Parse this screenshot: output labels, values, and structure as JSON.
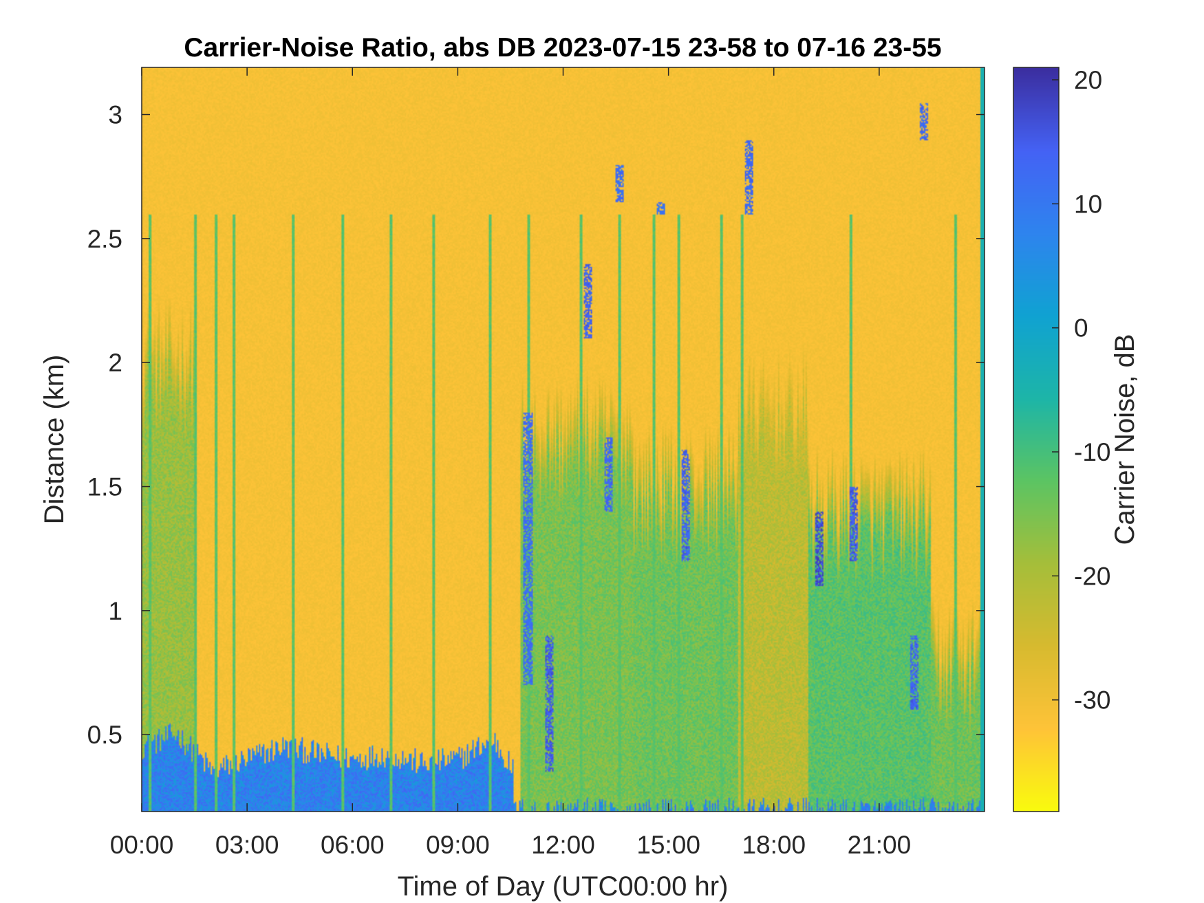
{
  "chart_data": {
    "type": "heatmap",
    "title": "Carrier-Noise Ratio, abs DB 2023-07-15 23-58 to 07-16 23-55",
    "xlabel": "Time of Day (UTC00:00 hr)",
    "ylabel": "Distance (km)",
    "xlim_hours": [
      0,
      24
    ],
    "ylim_km": [
      0.19,
      3.19
    ],
    "x_ticks": [
      {
        "hours": 0,
        "label": "00:00"
      },
      {
        "hours": 3,
        "label": "03:00"
      },
      {
        "hours": 6,
        "label": "06:00"
      },
      {
        "hours": 9,
        "label": "09:00"
      },
      {
        "hours": 12,
        "label": "12:00"
      },
      {
        "hours": 15,
        "label": "15:00"
      },
      {
        "hours": 18,
        "label": "18:00"
      },
      {
        "hours": 21,
        "label": "21:00"
      }
    ],
    "y_ticks": [
      {
        "value": 0.5,
        "label": "0.5"
      },
      {
        "value": 1,
        "label": "1"
      },
      {
        "value": 1.5,
        "label": "1.5"
      },
      {
        "value": 2,
        "label": "2"
      },
      {
        "value": 2.5,
        "label": "2.5"
      },
      {
        "value": 3,
        "label": "3"
      }
    ],
    "colorbar": {
      "label": "Carrier Noise, dB",
      "clim": [
        -39,
        21
      ],
      "ticks": [
        {
          "value": 20,
          "label": "20"
        },
        {
          "value": 10,
          "label": "10"
        },
        {
          "value": 0,
          "label": "0"
        },
        {
          "value": -10,
          "label": "-10"
        },
        {
          "value": -20,
          "label": "-20"
        },
        {
          "value": -30,
          "label": "-30"
        }
      ],
      "colormap": [
        "#F9FB0E",
        "#FEC338",
        "#D7BA2F",
        "#A5BE3A",
        "#5CC463",
        "#1DB5A8",
        "#10A2D2",
        "#2E84EE",
        "#4462F4",
        "#3B2E9F"
      ]
    },
    "grid": false,
    "background_level_db": -31,
    "features": {
      "near_ground_enhanced_layer": {
        "top_km_by_hour": [
          [
            0,
            0.45
          ],
          [
            1,
            0.5
          ],
          [
            2,
            0.35
          ],
          [
            3,
            0.4
          ],
          [
            4,
            0.45
          ],
          [
            5,
            0.42
          ],
          [
            6,
            0.4
          ],
          [
            7,
            0.42
          ],
          [
            8,
            0.38
          ],
          [
            9,
            0.4
          ],
          [
            10,
            0.48
          ],
          [
            10.6,
            0.35
          ]
        ],
        "level_db": 10
      },
      "daytime_plumes": [
        {
          "t_start": 0.0,
          "t_end": 1.5,
          "top_km": 2.1,
          "level_db": -18
        },
        {
          "t_start": 10.8,
          "t_end": 14.0,
          "top_km": 1.8,
          "level_db": -15
        },
        {
          "t_start": 14.0,
          "t_end": 17.0,
          "top_km": 1.6,
          "level_db": -14
        },
        {
          "t_start": 17.0,
          "t_end": 19.0,
          "top_km": 1.9,
          "level_db": -22
        },
        {
          "t_start": 19.0,
          "t_end": 22.5,
          "top_km": 1.5,
          "level_db": -12
        },
        {
          "t_start": 22.5,
          "t_end": 24.0,
          "top_km": 0.9,
          "level_db": -14
        }
      ],
      "cloud_patches": [
        {
          "t": 11.0,
          "d0": 0.7,
          "d1": 1.8,
          "level_db": 12
        },
        {
          "t": 11.6,
          "d0": 0.35,
          "d1": 0.9,
          "level_db": 15
        },
        {
          "t": 12.7,
          "d0": 2.1,
          "d1": 2.4,
          "level_db": 14
        },
        {
          "t": 13.3,
          "d0": 1.4,
          "d1": 1.7,
          "level_db": 13
        },
        {
          "t": 13.6,
          "d0": 2.65,
          "d1": 2.8,
          "level_db": 12
        },
        {
          "t": 14.8,
          "d0": 2.6,
          "d1": 2.65,
          "level_db": 11
        },
        {
          "t": 15.5,
          "d0": 1.2,
          "d1": 1.65,
          "level_db": 14
        },
        {
          "t": 17.3,
          "d0": 2.6,
          "d1": 2.9,
          "level_db": 13
        },
        {
          "t": 19.3,
          "d0": 1.1,
          "d1": 1.4,
          "level_db": 17
        },
        {
          "t": 20.3,
          "d0": 1.2,
          "d1": 1.5,
          "level_db": 15
        },
        {
          "t": 22.0,
          "d0": 0.6,
          "d1": 0.9,
          "level_db": 14
        },
        {
          "t": 22.3,
          "d0": 2.9,
          "d1": 3.05,
          "level_db": 13
        }
      ],
      "vertical_streaks_hours": [
        0.2,
        1.5,
        2.1,
        2.6,
        4.3,
        5.7,
        7.1,
        8.3,
        9.9,
        11.0,
        12.5,
        13.6,
        14.6,
        15.3,
        16.5,
        17.1,
        20.2,
        23.2
      ]
    }
  }
}
